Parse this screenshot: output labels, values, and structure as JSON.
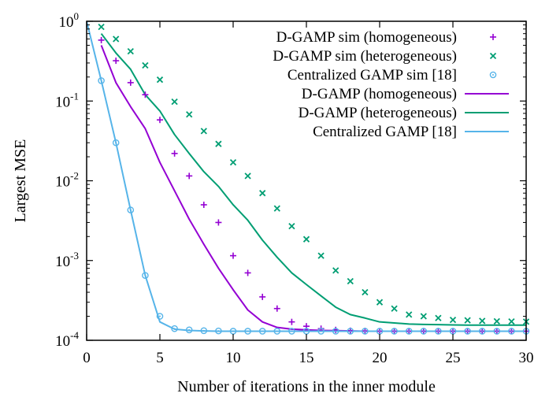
{
  "chart_data": {
    "type": "line",
    "title": "",
    "xlabel": "Number of iterations in the inner module",
    "ylabel": "Largest MSE",
    "xlim": [
      0,
      30
    ],
    "ylim": [
      0.0001,
      1
    ],
    "y_scale": "log",
    "x_ticks": [
      "0",
      "5",
      "10",
      "15",
      "20",
      "25",
      "30"
    ],
    "y_ticks": [
      {
        "base": "10",
        "exp": "0"
      },
      {
        "base": "10",
        "exp": "-1"
      },
      {
        "base": "10",
        "exp": "-2"
      },
      {
        "base": "10",
        "exp": "-3"
      },
      {
        "base": "10",
        "exp": "-4"
      }
    ],
    "grid": false,
    "legend_position": "top-right",
    "series": [
      {
        "name": "D-GAMP sim (homogeneous)",
        "style": "markers",
        "marker": "plus",
        "color": "#9400d3",
        "x": [
          1,
          2,
          3,
          4,
          5,
          6,
          7,
          8,
          9,
          10,
          11,
          12,
          13,
          14,
          15,
          16,
          17,
          18,
          19,
          20,
          21,
          22,
          23,
          24,
          25,
          26,
          27,
          28,
          29,
          30
        ],
        "y": [
          0.58,
          0.32,
          0.17,
          0.12,
          0.058,
          0.022,
          0.0115,
          0.005,
          0.003,
          0.00115,
          0.0007,
          0.00035,
          0.00025,
          0.00017,
          0.00015,
          0.00014,
          0.000135,
          0.000132,
          0.000131,
          0.00013,
          0.00013,
          0.00013,
          0.00013,
          0.00013,
          0.00013,
          0.00013,
          0.00013,
          0.00013,
          0.00013,
          0.00013
        ]
      },
      {
        "name": "D-GAMP sim (heterogeneous)",
        "style": "markers",
        "marker": "cross",
        "color": "#009e73",
        "x": [
          1,
          2,
          3,
          4,
          5,
          6,
          7,
          8,
          9,
          10,
          11,
          12,
          13,
          14,
          15,
          16,
          17,
          18,
          19,
          20,
          21,
          22,
          23,
          24,
          25,
          26,
          27,
          28,
          29,
          30
        ],
        "y": [
          0.85,
          0.6,
          0.42,
          0.28,
          0.185,
          0.098,
          0.068,
          0.042,
          0.029,
          0.017,
          0.0115,
          0.007,
          0.0045,
          0.0027,
          0.00185,
          0.00115,
          0.00075,
          0.00055,
          0.0004,
          0.0003,
          0.00025,
          0.00021,
          0.0002,
          0.00019,
          0.00018,
          0.000178,
          0.000175,
          0.000173,
          0.000172,
          0.000171
        ]
      },
      {
        "name": "Centralized GAMP sim [18]",
        "style": "markers",
        "marker": "circle",
        "color": "#56b4e9",
        "x": [
          1,
          2,
          3,
          4,
          5,
          6,
          7,
          8,
          9,
          10,
          11,
          12,
          13,
          14,
          15,
          16,
          17,
          18,
          19,
          20,
          21,
          22,
          23,
          24,
          25,
          26,
          27,
          28,
          29,
          30
        ],
        "y": [
          0.18,
          0.03,
          0.0043,
          0.00065,
          0.0002,
          0.00014,
          0.000135,
          0.000132,
          0.000131,
          0.00013,
          0.00013,
          0.00013,
          0.00013,
          0.00013,
          0.00013,
          0.00013,
          0.00013,
          0.00013,
          0.00013,
          0.00013,
          0.00013,
          0.00013,
          0.00013,
          0.00013,
          0.00013,
          0.00013,
          0.00013,
          0.00013,
          0.00013,
          0.00013
        ]
      },
      {
        "name": "D-GAMP (homogeneous)",
        "style": "line",
        "color": "#9400d3",
        "x": [
          1,
          2,
          3,
          4,
          5,
          6,
          7,
          8,
          9,
          10,
          11,
          12,
          13,
          14,
          15,
          16,
          17,
          18,
          19,
          20,
          21,
          22,
          23,
          24,
          25,
          26,
          27,
          28,
          29,
          30
        ],
        "y": [
          0.5,
          0.17,
          0.085,
          0.045,
          0.017,
          0.0075,
          0.0033,
          0.0016,
          0.0008,
          0.00043,
          0.00024,
          0.00017,
          0.000145,
          0.000138,
          0.000135,
          0.000133,
          0.000132,
          0.000131,
          0.00013,
          0.00013,
          0.00013,
          0.00013,
          0.00013,
          0.00013,
          0.00013,
          0.00013,
          0.00013,
          0.00013,
          0.00013,
          0.00013
        ]
      },
      {
        "name": "D-GAMP (heterogeneous)",
        "style": "line",
        "color": "#009e73",
        "x": [
          1,
          2,
          3,
          4,
          5,
          6,
          7,
          8,
          9,
          10,
          11,
          12,
          13,
          14,
          15,
          16,
          17,
          18,
          19,
          20,
          21,
          22,
          23,
          24,
          25,
          26,
          27,
          28,
          29,
          30
        ],
        "y": [
          0.7,
          0.4,
          0.25,
          0.12,
          0.075,
          0.038,
          0.022,
          0.013,
          0.0085,
          0.005,
          0.0032,
          0.0018,
          0.0011,
          0.0007,
          0.0005,
          0.00036,
          0.00026,
          0.00021,
          0.00019,
          0.00017,
          0.000165,
          0.00016,
          0.000158,
          0.000157,
          0.000156,
          0.000155,
          0.000155,
          0.000155,
          0.000155,
          0.000155
        ]
      },
      {
        "name": "Centralized GAMP [18]",
        "style": "line",
        "color": "#56b4e9",
        "x": [
          0,
          1,
          2,
          3,
          4,
          5,
          6,
          7,
          8,
          9,
          10,
          11,
          12,
          13,
          14,
          15,
          16,
          17,
          18,
          19,
          20,
          21,
          22,
          23,
          24,
          25,
          26,
          27,
          28,
          29,
          30
        ],
        "y": [
          1,
          0.18,
          0.03,
          0.0043,
          0.00065,
          0.00017,
          0.000138,
          0.000133,
          0.000131,
          0.00013,
          0.00013,
          0.00013,
          0.00013,
          0.00013,
          0.00013,
          0.00013,
          0.00013,
          0.00013,
          0.00013,
          0.00013,
          0.00013,
          0.00013,
          0.00013,
          0.00013,
          0.00013,
          0.00013,
          0.00013,
          0.00013,
          0.00013,
          0.00013,
          0.00013
        ]
      }
    ]
  }
}
